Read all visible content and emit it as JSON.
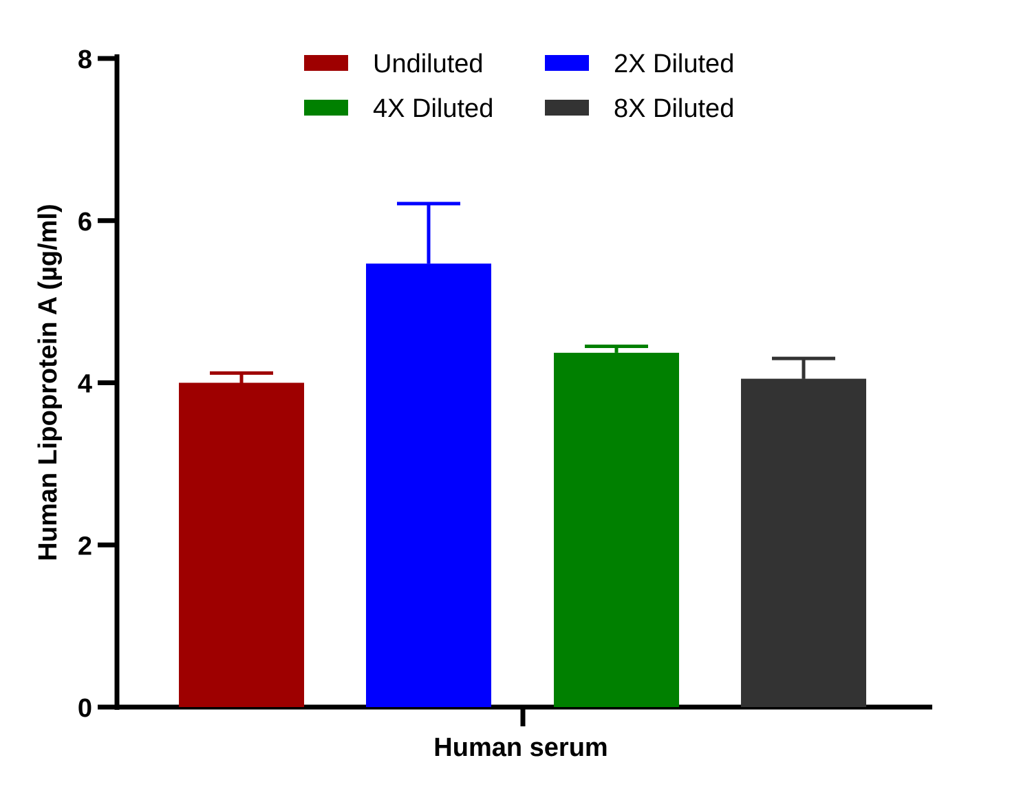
{
  "chart_data": {
    "type": "bar",
    "title": "",
    "xlabel": "Human serum",
    "ylabel": "Human Lipoprotein A (µg/ml)",
    "ylim": [
      0,
      8
    ],
    "yticks": [
      "0",
      "2",
      "4",
      "6",
      "8"
    ],
    "yticks_values": [
      0,
      2,
      4,
      6,
      8
    ],
    "categories": [
      "Human serum"
    ],
    "legend_position": "top-center",
    "series": [
      {
        "name": "Undiluted",
        "values": [
          4.0
        ],
        "error": [
          0.12
        ],
        "color": "#9e0000"
      },
      {
        "name": "2X Diluted",
        "values": [
          5.47
        ],
        "error": [
          0.74
        ],
        "color": "#0000ff"
      },
      {
        "name": "4X Diluted",
        "values": [
          4.37
        ],
        "error": [
          0.08
        ],
        "color": "#008000"
      },
      {
        "name": "8X Diluted",
        "values": [
          4.05
        ],
        "error": [
          0.25
        ],
        "color": "#333333"
      }
    ]
  }
}
